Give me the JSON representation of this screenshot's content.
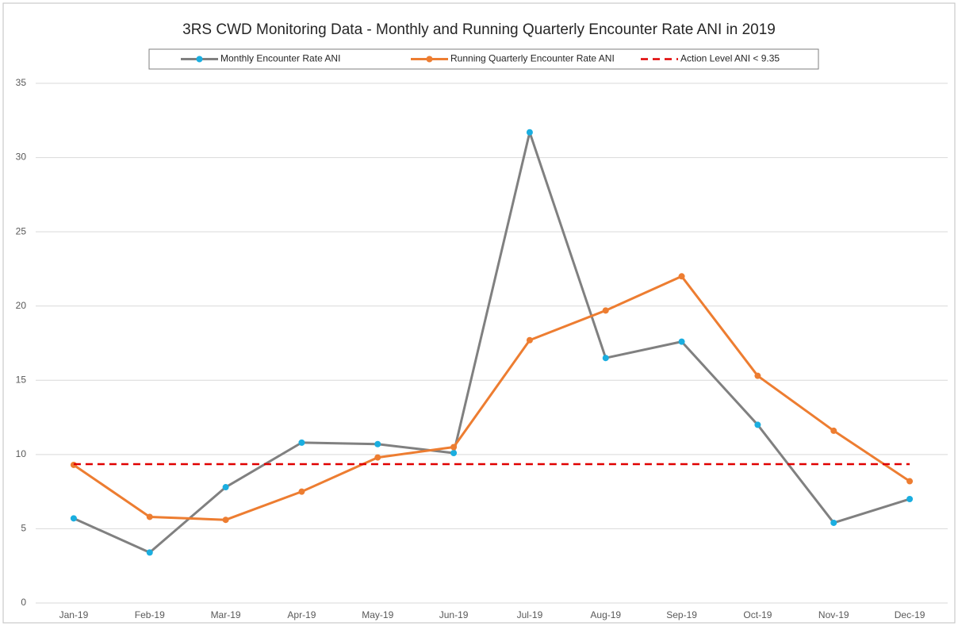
{
  "chart_data": {
    "type": "line",
    "title": "3RS CWD Monitoring Data - Monthly and Running Quarterly Encounter Rate ANI in 2019",
    "categories": [
      "Jan-19",
      "Feb-19",
      "Mar-19",
      "Apr-19",
      "May-19",
      "Jun-19",
      "Jul-19",
      "Aug-19",
      "Sep-19",
      "Oct-19",
      "Nov-19",
      "Dec-19"
    ],
    "series": [
      {
        "name": "Monthly Encounter Rate ANI",
        "color": "#808080",
        "marker_color": "#1aaee0",
        "dashed": false,
        "values": [
          5.7,
          3.4,
          7.8,
          10.8,
          10.7,
          10.1,
          31.7,
          16.5,
          17.6,
          12.0,
          5.4,
          7.0
        ]
      },
      {
        "name": "Running Quarterly Encounter Rate ANI",
        "color": "#ed7d31",
        "marker_color": "#ed7d31",
        "dashed": false,
        "values": [
          9.3,
          5.8,
          5.6,
          7.5,
          9.8,
          10.5,
          17.7,
          19.7,
          22.0,
          15.3,
          11.6,
          8.2
        ]
      },
      {
        "name": "Action Level ANI < 9.35",
        "color": "#e00000",
        "marker_color": null,
        "dashed": true,
        "values": [
          9.35,
          9.35,
          9.35,
          9.35,
          9.35,
          9.35,
          9.35,
          9.35,
          9.35,
          9.35,
          9.35,
          9.35
        ]
      }
    ],
    "ylim": [
      0,
      35
    ],
    "yticks": [
      0,
      5,
      10,
      15,
      20,
      25,
      30,
      35
    ],
    "grid": true,
    "legend": "top"
  }
}
